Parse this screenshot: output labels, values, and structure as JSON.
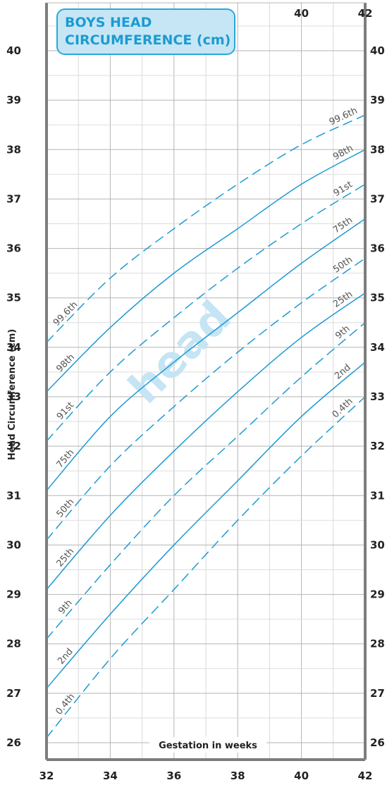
{
  "chart_data": {
    "type": "line",
    "title": "BOYS HEAD CIRCUMFERENCE (cm)",
    "title_lines": [
      "BOYS HEAD",
      "CIRCUMFERENCE (cm)"
    ],
    "watermark": "head",
    "xlabel": "Gestation in weeks",
    "ylabel": "Head Circumference (cm)",
    "xlim": [
      32,
      42
    ],
    "ylim": [
      25.7,
      41
    ],
    "x_ticks_bottom": [
      "32",
      "34",
      "36",
      "38",
      "40",
      "42"
    ],
    "x_ticks_top": [
      "40",
      "42"
    ],
    "y_ticks": [
      "26",
      "27",
      "28",
      "29",
      "30",
      "31",
      "32",
      "33",
      "34",
      "35",
      "36",
      "37",
      "38",
      "39",
      "40"
    ],
    "grid": true,
    "line_color": "#1c9bd3",
    "series": [
      {
        "name": "0.4th",
        "style": "dashed",
        "x": [
          32,
          34,
          36,
          38,
          40,
          42
        ],
        "values": [
          26.1,
          27.7,
          29.1,
          30.5,
          31.8,
          33.0
        ]
      },
      {
        "name": "2nd",
        "style": "solid",
        "x": [
          32,
          34,
          36,
          38,
          40,
          42
        ],
        "values": [
          27.1,
          28.6,
          30.0,
          31.3,
          32.6,
          33.7
        ]
      },
      {
        "name": "9th",
        "style": "dashed",
        "x": [
          32,
          34,
          36,
          38,
          40,
          42
        ],
        "values": [
          28.1,
          29.6,
          31.0,
          32.2,
          33.4,
          34.5
        ]
      },
      {
        "name": "25th",
        "style": "solid",
        "x": [
          32,
          34,
          36,
          38,
          40,
          42
        ],
        "values": [
          29.1,
          30.6,
          31.9,
          33.1,
          34.2,
          35.1
        ]
      },
      {
        "name": "50th",
        "style": "dashed",
        "x": [
          32,
          34,
          36,
          38,
          40,
          42
        ],
        "values": [
          30.1,
          31.6,
          32.8,
          33.9,
          34.9,
          35.8
        ]
      },
      {
        "name": "75th",
        "style": "solid",
        "x": [
          32,
          34,
          36,
          38,
          40,
          42
        ],
        "values": [
          31.1,
          32.6,
          33.7,
          34.7,
          35.7,
          36.6
        ]
      },
      {
        "name": "91st",
        "style": "dashed",
        "x": [
          32,
          34,
          36,
          38,
          40,
          42
        ],
        "values": [
          32.1,
          33.5,
          34.6,
          35.6,
          36.5,
          37.3
        ]
      },
      {
        "name": "98th",
        "style": "solid",
        "x": [
          32,
          34,
          36,
          38,
          40,
          42
        ],
        "values": [
          33.1,
          34.4,
          35.5,
          36.4,
          37.3,
          38.0
        ]
      },
      {
        "name": "99.6th",
        "style": "dashed",
        "x": [
          32,
          34,
          36,
          38,
          40,
          42
        ],
        "values": [
          34.1,
          35.4,
          36.4,
          37.3,
          38.1,
          38.7
        ]
      }
    ]
  }
}
